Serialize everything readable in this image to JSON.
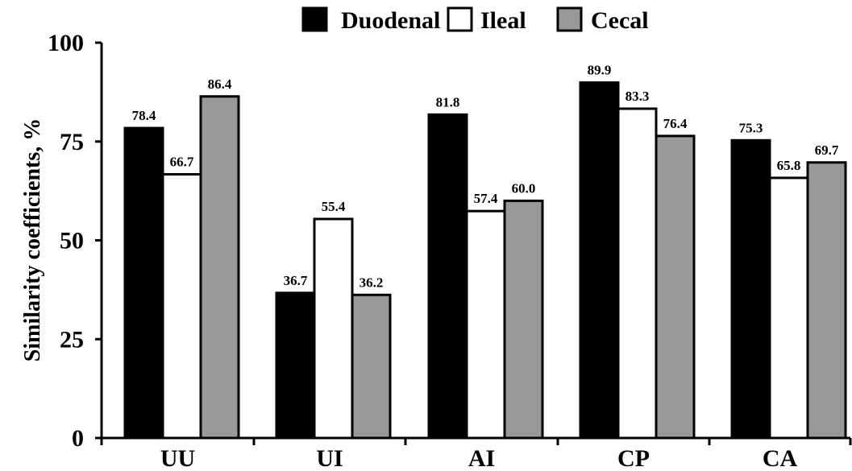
{
  "chart_data": {
    "type": "bar",
    "categories": [
      "UU",
      "UI",
      "AI",
      "CP",
      "CA"
    ],
    "series": [
      {
        "name": "Duodenal",
        "values": [
          78.4,
          36.7,
          81.8,
          89.9,
          75.3
        ],
        "color": "#000000"
      },
      {
        "name": "Ileal",
        "values": [
          66.7,
          55.4,
          57.4,
          83.3,
          65.8
        ],
        "color": "#ffffff"
      },
      {
        "name": "Cecal",
        "values": [
          86.4,
          36.2,
          60.0,
          76.4,
          69.7
        ],
        "color": "#999999"
      }
    ],
    "title": "",
    "xlabel": "",
    "ylabel": "Similarity coefficients, %",
    "ylim": [
      0,
      100
    ],
    "yticks": [
      "0",
      "25",
      "50",
      "75",
      "100"
    ],
    "value_labels": [
      [
        "78.4",
        "66.7",
        "86.4"
      ],
      [
        "36.7",
        "55.4",
        "36.2"
      ],
      [
        "81.8",
        "57.4",
        "60.0"
      ],
      [
        "89.9",
        "83.3",
        "76.4"
      ],
      [
        "75.3",
        "65.8",
        "69.7"
      ]
    ],
    "grid": false,
    "legend_position": "top-center"
  }
}
